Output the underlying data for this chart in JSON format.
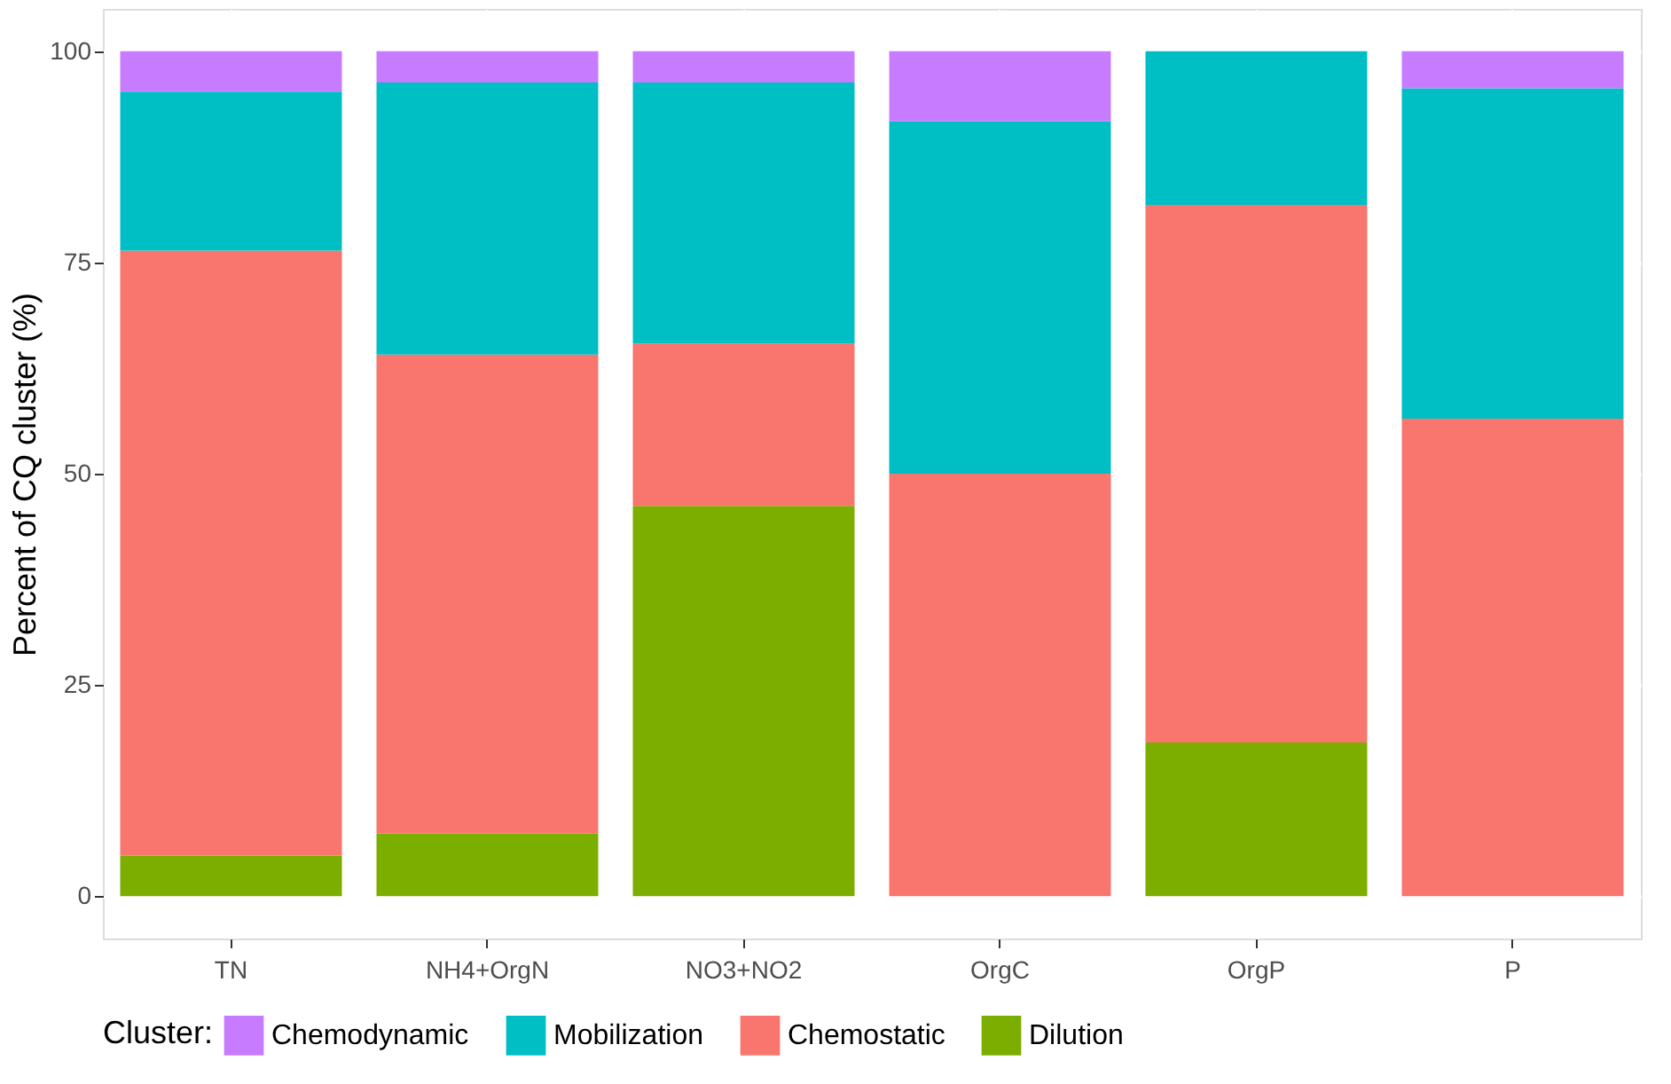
{
  "chart_data": {
    "type": "bar",
    "stacked": true,
    "ylabel": "Percent of CQ cluster (%)",
    "legend_title": "Cluster:",
    "legend": "bottom",
    "grid": true,
    "categories": [
      "TN",
      "NH4+OrgN",
      "NO3+NO2",
      "OrgC",
      "OrgP",
      "P"
    ],
    "ylim": [
      -5,
      105
    ],
    "yticks": [
      0,
      25,
      50,
      75,
      100
    ],
    "series": [
      {
        "name": "Dilution",
        "color": "#7cae00",
        "values": [
          4.8,
          7.4,
          46.2,
          0,
          18.2,
          0
        ]
      },
      {
        "name": "Chemostatic",
        "color": "#f8766d",
        "values": [
          71.6,
          56.7,
          19.2,
          50,
          63.6,
          56.5
        ]
      },
      {
        "name": "Mobilization",
        "color": "#00bfc4",
        "values": [
          18.8,
          32.2,
          30.9,
          41.7,
          18.2,
          39.1
        ]
      },
      {
        "name": "Chemodynamic",
        "color": "#c77cff",
        "values": [
          4.8,
          3.7,
          3.7,
          8.3,
          0,
          4.4
        ]
      }
    ]
  }
}
